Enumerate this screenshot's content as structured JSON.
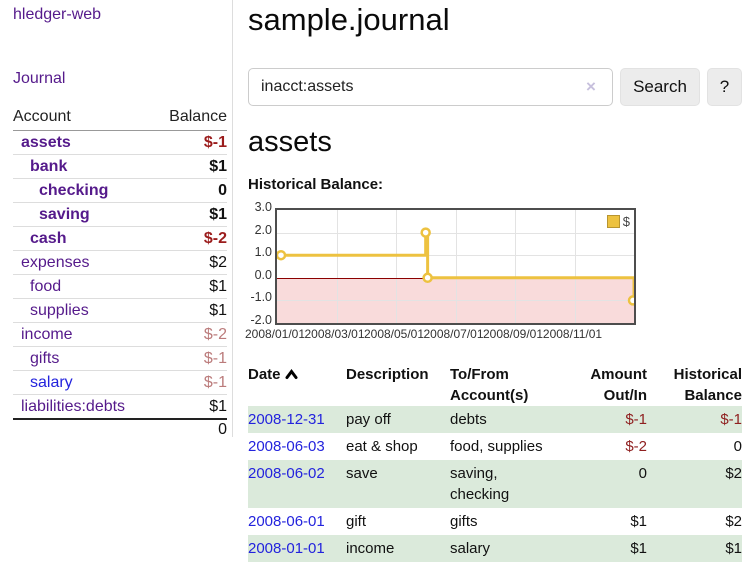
{
  "app": {
    "title": "hledger-web",
    "nav_journal": "Journal"
  },
  "colors": {
    "link_purple": "#551a8b",
    "link_blue": "#2323dd",
    "neg_strong": "#9b1c1c",
    "neg_muted": "#bb7b7b",
    "table_neg": "#8f2020",
    "row_stripe_green": "#dbeadb",
    "chart_line": "#edc240",
    "chart_neg_fill": "#f9dbdb",
    "chart_zero_line": "#8b0000"
  },
  "sidebar": {
    "header": {
      "account": "Account",
      "balance": "Balance"
    },
    "accounts": [
      {
        "name": "assets",
        "indent": 1,
        "bold": true,
        "link": "purple",
        "balance": "$-1",
        "balance_style": "neg-strong"
      },
      {
        "name": "bank",
        "indent": 2,
        "bold": true,
        "link": "purple",
        "balance": "$1",
        "balance_style": "pos"
      },
      {
        "name": "checking",
        "indent": 3,
        "bold": true,
        "link": "purple",
        "balance": "0",
        "balance_style": "pos"
      },
      {
        "name": "saving",
        "indent": 3,
        "bold": true,
        "link": "purple",
        "balance": "$1",
        "balance_style": "pos"
      },
      {
        "name": "cash",
        "indent": 2,
        "bold": true,
        "link": "purple",
        "balance": "$-2",
        "balance_style": "neg-strong"
      },
      {
        "name": "expenses",
        "indent": 1,
        "bold": false,
        "link": "purple",
        "balance": "$2",
        "balance_style": "pos"
      },
      {
        "name": "food",
        "indent": 2,
        "bold": false,
        "link": "purple",
        "balance": "$1",
        "balance_style": "pos"
      },
      {
        "name": "supplies",
        "indent": 2,
        "bold": false,
        "link": "purple",
        "balance": "$1",
        "balance_style": "pos"
      },
      {
        "name": "income",
        "indent": 1,
        "bold": false,
        "link": "purple",
        "balance": "$-2",
        "balance_style": "neg-muted"
      },
      {
        "name": "gifts",
        "indent": 2,
        "bold": false,
        "link": "purple",
        "balance": "$-1",
        "balance_style": "neg-muted"
      },
      {
        "name": "salary",
        "indent": 2,
        "bold": false,
        "link": "blue",
        "balance": "$-1",
        "balance_style": "neg-muted"
      },
      {
        "name": "liabilities:debts",
        "indent": 1,
        "bold": false,
        "link": "purple",
        "balance": "$1",
        "balance_style": "pos"
      }
    ],
    "total": "0"
  },
  "main": {
    "title": "sample.journal",
    "search": {
      "value": "inacct:assets",
      "clear": "×",
      "button": "Search",
      "help": "?"
    },
    "account_heading": "assets",
    "chart_title": "Historical Balance:"
  },
  "chart_data": {
    "type": "line",
    "step": true,
    "title": "Historical Balance:",
    "legend": [
      {
        "label": "$",
        "color": "#edc240"
      }
    ],
    "legend_position": "top-right",
    "grid": true,
    "x_domain": [
      "2008-01-01",
      "2008-12-31"
    ],
    "ylim": [
      -2,
      3
    ],
    "yticks": [
      "3.0",
      "2.0",
      "1.0",
      "0.0",
      "-1.0",
      "-2.0"
    ],
    "xticks": [
      "2008/01/01",
      "2008/03/01",
      "2008/05/01",
      "2008/07/01",
      "2008/09/01",
      "2008/11/01"
    ],
    "series": [
      {
        "name": "$",
        "points": [
          {
            "x": "2008-01-01",
            "y": 1
          },
          {
            "x": "2008-06-01",
            "y": 2
          },
          {
            "x": "2008-06-03",
            "y": 0
          },
          {
            "x": "2008-12-31",
            "y": -1
          }
        ]
      }
    ],
    "negative_region_shaded": true
  },
  "register": {
    "headers": {
      "date": "Date",
      "description": "Description",
      "accounts_line1": "To/From",
      "accounts_line2": "Account(s)",
      "amount_line1": "Amount",
      "amount_line2": "Out/In",
      "balance_line1": "Historical",
      "balance_line2": "Balance"
    },
    "rows": [
      {
        "date": "2008-12-31",
        "description": "pay off",
        "accounts": "debts",
        "amount": "$-1",
        "amount_neg": true,
        "balance": "$-1",
        "balance_neg": true
      },
      {
        "date": "2008-06-03",
        "description": "eat & shop",
        "accounts": "food, supplies",
        "amount": "$-2",
        "amount_neg": true,
        "balance": "0",
        "balance_neg": false
      },
      {
        "date": "2008-06-02",
        "description": "save",
        "accounts": "saving,\nchecking",
        "amount": "0",
        "amount_neg": false,
        "balance": "$2",
        "balance_neg": false
      },
      {
        "date": "2008-06-01",
        "description": "gift",
        "accounts": "gifts",
        "amount": "$1",
        "amount_neg": false,
        "balance": "$2",
        "balance_neg": false
      },
      {
        "date": "2008-01-01",
        "description": "income",
        "accounts": "salary",
        "amount": "$1",
        "amount_neg": false,
        "balance": "$1",
        "balance_neg": false
      }
    ]
  }
}
